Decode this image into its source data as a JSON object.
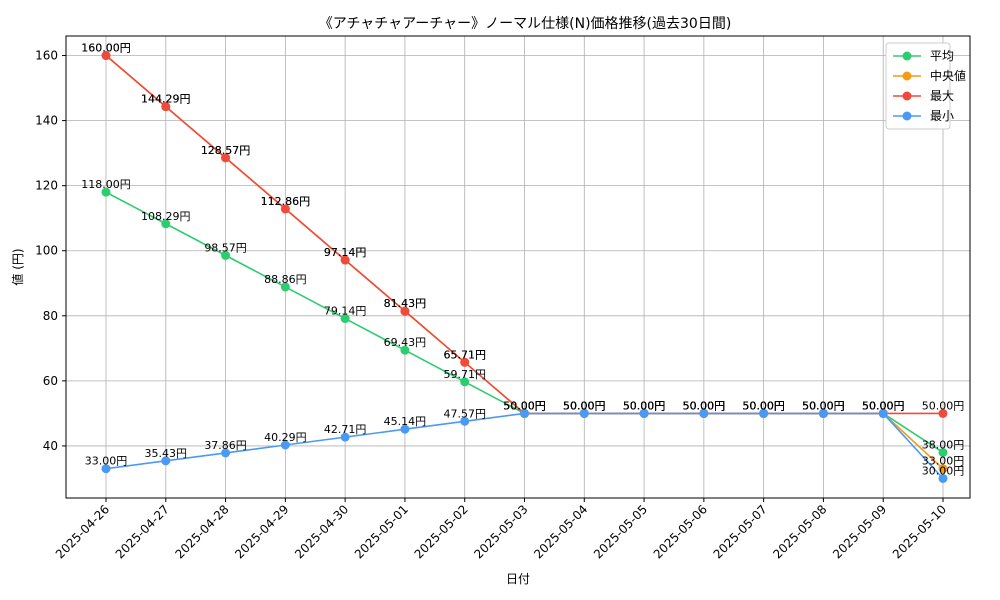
{
  "chart_data": {
    "type": "line",
    "title": "《アチャチャアーチャー》ノーマル仕様(N)価格推移(過去30日間)",
    "xlabel": "日付",
    "ylabel": "値 (円)",
    "categories": [
      "2025-04-26",
      "2025-04-27",
      "2025-04-28",
      "2025-04-29",
      "2025-04-30",
      "2025-05-01",
      "2025-05-02",
      "2025-05-03",
      "2025-05-04",
      "2025-05-05",
      "2025-05-06",
      "2025-05-07",
      "2025-05-08",
      "2025-05-09",
      "2025-05-10"
    ],
    "ylim": [
      24,
      166
    ],
    "yticks": [
      40,
      60,
      80,
      100,
      120,
      140,
      160
    ],
    "grid": true,
    "legend_position": "top-right",
    "label_suffix": "円",
    "series": [
      {
        "name": "平均",
        "color": "#2ecc71",
        "values": [
          118.0,
          108.29,
          98.57,
          88.86,
          79.14,
          69.43,
          59.71,
          50.0,
          50.0,
          50.0,
          50.0,
          50.0,
          50.0,
          50.0,
          38.0
        ]
      },
      {
        "name": "中央値",
        "color": "#f39c12",
        "values": [
          160.0,
          144.29,
          128.57,
          112.86,
          97.14,
          81.43,
          65.71,
          50.0,
          50.0,
          50.0,
          50.0,
          50.0,
          50.0,
          50.0,
          33.0
        ]
      },
      {
        "name": "最大",
        "color": "#f04a3d",
        "values": [
          160.0,
          144.29,
          128.57,
          112.86,
          97.14,
          81.43,
          65.71,
          50.0,
          50.0,
          50.0,
          50.0,
          50.0,
          50.0,
          50.0,
          50.0
        ]
      },
      {
        "name": "最小",
        "color": "#4a9af5",
        "values": [
          33.0,
          35.43,
          37.86,
          40.29,
          42.71,
          45.14,
          47.57,
          50.0,
          50.0,
          50.0,
          50.0,
          50.0,
          50.0,
          50.0,
          30.0
        ]
      }
    ]
  }
}
